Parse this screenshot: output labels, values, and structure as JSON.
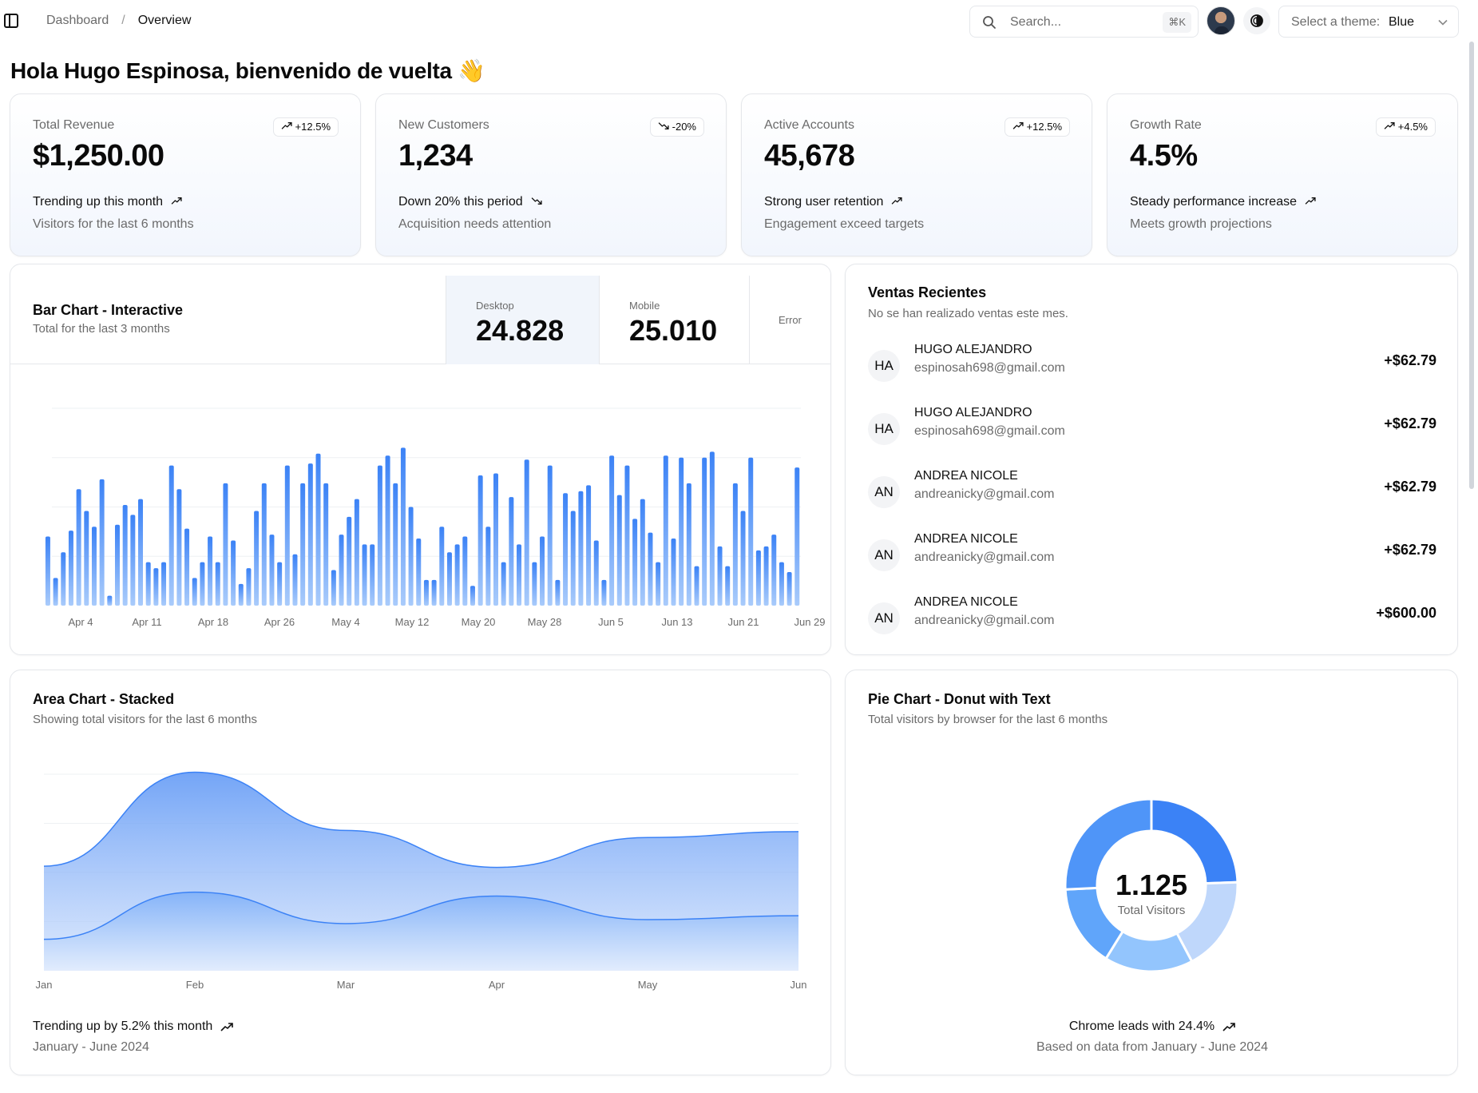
{
  "header": {
    "breadcrumb": [
      "Dashboard",
      "/",
      "Overview"
    ],
    "search_placeholder": "Search...",
    "search_shortcut": "⌘K",
    "theme_label": "Select a theme:",
    "theme_value": "Blue"
  },
  "greeting": "Hola Hugo Espinosa, bienvenido de vuelta 👋",
  "stats": [
    {
      "label": "Total Revenue",
      "badge": "+12.5%",
      "value": "$1,250.00",
      "trend": "Trending up this month",
      "sub": "Visitors for the last 6 months",
      "direction": "up"
    },
    {
      "label": "New Customers",
      "badge": "-20%",
      "value": "1,234",
      "trend": "Down 20% this period",
      "sub": "Acquisition needs attention",
      "direction": "down"
    },
    {
      "label": "Active Accounts",
      "badge": "+12.5%",
      "value": "45,678",
      "trend": "Strong user retention",
      "sub": "Engagement exceed targets",
      "direction": "up"
    },
    {
      "label": "Growth Rate",
      "badge": "+4.5%",
      "value": "4.5%",
      "trend": "Steady performance increase",
      "sub": "Meets growth projections",
      "direction": "up"
    }
  ],
  "bar_card": {
    "title": "Bar Chart - Interactive",
    "desc": "Total for the last 3 months",
    "toggles": [
      {
        "label": "Desktop",
        "value": "24.828"
      },
      {
        "label": "Mobile",
        "value": "25.010"
      },
      {
        "label": "Error",
        "value": ""
      }
    ]
  },
  "sales": {
    "title": "Ventas Recientes",
    "desc": "No se han realizado ventas este mes.",
    "items": [
      {
        "initials": "HA",
        "name": "HUGO ALEJANDRO",
        "email": "espinosah698@gmail.com",
        "amount": "+$62.79"
      },
      {
        "initials": "HA",
        "name": "HUGO ALEJANDRO",
        "email": "espinosah698@gmail.com",
        "amount": "+$62.79"
      },
      {
        "initials": "AN",
        "name": "ANDREA NICOLE",
        "email": "andreanicky@gmail.com",
        "amount": "+$62.79"
      },
      {
        "initials": "AN",
        "name": "ANDREA NICOLE",
        "email": "andreanicky@gmail.com",
        "amount": "+$62.79"
      },
      {
        "initials": "AN",
        "name": "ANDREA NICOLE",
        "email": "andreanicky@gmail.com",
        "amount": "+$600.00"
      }
    ]
  },
  "area_card": {
    "title": "Area Chart - Stacked",
    "desc": "Showing total visitors for the last 6 months",
    "trend": "Trending up by 5.2% this month",
    "sub": "January - June 2024"
  },
  "pie_card": {
    "title": "Pie Chart - Donut with Text",
    "desc": "Total visitors by browser for the last 6 months",
    "trend": "Chrome leads with 24.4%",
    "sub": "Based on data from January - June 2024"
  },
  "colors": {
    "accent": "#3b82f6",
    "accent_light": "#93c5fd"
  },
  "chart_data": [
    {
      "type": "bar",
      "xlabel": "",
      "ylabel": "",
      "tick_labels": [
        "Apr 4",
        "Apr 11",
        "Apr 18",
        "Apr 26",
        "May 4",
        "May 12",
        "May 20",
        "May 28",
        "Jun 5",
        "Jun 13",
        "Jun 21",
        "Jun 29"
      ],
      "ylim": [
        0,
        100
      ],
      "series": [
        {
          "values": [
            35,
            14,
            27,
            38,
            59,
            48,
            40,
            64,
            5,
            41,
            51,
            46,
            54,
            22,
            19,
            22,
            71,
            59,
            39,
            14,
            22,
            35,
            22,
            62,
            33,
            11,
            19,
            48,
            62,
            36,
            22,
            71,
            26,
            62,
            72,
            77,
            62,
            18,
            36,
            45,
            54,
            31,
            31,
            71,
            76,
            62,
            80,
            50,
            34,
            13,
            13,
            40,
            27,
            31,
            35,
            10,
            66,
            40,
            67,
            22,
            55,
            31,
            74,
            22,
            35,
            71,
            13,
            57,
            48,
            58,
            61,
            33,
            13,
            76,
            56,
            71,
            44,
            54,
            37,
            22,
            76,
            34,
            75,
            62,
            20,
            75,
            78,
            30,
            20,
            62,
            48,
            75,
            28,
            30,
            36,
            22,
            17,
            70
          ]
        }
      ]
    },
    {
      "type": "area",
      "categories": [
        "Jan",
        "Feb",
        "Mar",
        "Apr",
        "May",
        "Jun"
      ],
      "ylim": [
        0,
        500
      ],
      "series": [
        {
          "values": [
            80,
            200,
            120,
            190,
            130,
            140
          ]
        },
        {
          "values": [
            186,
            305,
            237,
            73,
            209,
            214
          ]
        }
      ]
    },
    {
      "type": "pie",
      "center_value": "1.125",
      "center_label": "Total Visitors",
      "slices": [
        {
          "value": 275,
          "color": "#3b82f6"
        },
        {
          "value": 200,
          "color": "#bfd7fb"
        },
        {
          "value": 187,
          "color": "#93c5fd"
        },
        {
          "value": 173,
          "color": "#60a5fa"
        },
        {
          "value": 290,
          "color": "#4f95f8"
        }
      ]
    }
  ]
}
